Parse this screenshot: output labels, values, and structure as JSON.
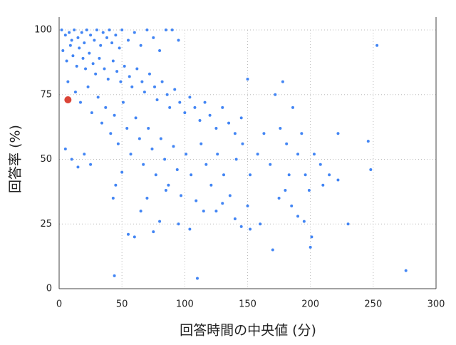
{
  "chart_data": {
    "type": "scatter",
    "xlabel": "回答時間の中央値 (分)",
    "ylabel": "回答率 (%)",
    "xlim": [
      0,
      300
    ],
    "ylim": [
      0,
      100
    ],
    "xticks": [
      0,
      50,
      100,
      150,
      200,
      250,
      300
    ],
    "yticks": [
      0,
      25,
      50,
      75,
      100
    ],
    "grid": true,
    "series": [
      {
        "color": "#4285f4",
        "marker_radius": 2,
        "x": [
          2,
          5,
          8,
          10,
          12,
          15,
          18,
          20,
          22,
          25,
          28,
          30,
          33,
          35,
          38,
          40,
          42,
          45,
          48,
          50,
          55,
          60,
          65,
          70,
          75,
          80,
          85,
          90,
          95,
          3,
          6,
          9,
          11,
          14,
          16,
          19,
          21,
          24,
          27,
          29,
          32,
          36,
          39,
          43,
          46,
          49,
          52,
          56,
          58,
          62,
          66,
          68,
          72,
          76,
          78,
          82,
          86,
          88,
          92,
          96,
          100,
          104,
          108,
          112,
          116,
          120,
          125,
          130,
          135,
          140,
          145,
          150,
          7,
          13,
          17,
          23,
          26,
          31,
          34,
          37,
          41,
          44,
          47,
          51,
          54,
          57,
          61,
          64,
          67,
          71,
          74,
          77,
          81,
          84,
          87,
          91,
          94,
          97,
          101,
          105,
          109,
          113,
          117,
          121,
          126,
          131,
          136,
          141,
          146,
          152,
          158,
          163,
          168,
          172,
          176,
          178,
          181,
          183,
          186,
          190,
          193,
          196,
          199,
          203,
          208,
          215,
          222,
          222,
          230,
          246,
          248,
          253,
          276,
          200,
          201,
          170,
          160,
          152,
          145,
          110,
          44,
          43,
          55,
          60,
          75,
          80,
          95,
          104,
          125,
          140,
          185,
          190,
          195,
          10,
          15,
          20,
          25,
          5,
          50,
          45,
          65,
          70,
          85,
          115,
          130,
          150,
          175,
          180,
          210
        ],
        "values": [
          100,
          98,
          99,
          96,
          100,
          97,
          99,
          95,
          100,
          98,
          96,
          100,
          94,
          99,
          97,
          100,
          95,
          98,
          93,
          100,
          96,
          99,
          94,
          100,
          97,
          92,
          100,
          100,
          96,
          92,
          88,
          94,
          90,
          86,
          93,
          89,
          85,
          91,
          87,
          83,
          89,
          85,
          81,
          88,
          84,
          80,
          86,
          82,
          78,
          85,
          80,
          76,
          83,
          78,
          73,
          80,
          75,
          70,
          77,
          72,
          68,
          74,
          70,
          65,
          72,
          67,
          62,
          70,
          64,
          60,
          66,
          81,
          80,
          76,
          72,
          78,
          68,
          74,
          64,
          70,
          60,
          67,
          56,
          72,
          62,
          52,
          66,
          58,
          48,
          62,
          54,
          44,
          58,
          50,
          40,
          55,
          46,
          36,
          52,
          44,
          34,
          56,
          48,
          40,
          52,
          44,
          36,
          50,
          56,
          44,
          52,
          60,
          48,
          75,
          62,
          80,
          56,
          44,
          70,
          52,
          60,
          44,
          38,
          52,
          48,
          44,
          60,
          42,
          25,
          57,
          46,
          94,
          7,
          16,
          20,
          15,
          25,
          23,
          24,
          4,
          5,
          35,
          21,
          20,
          22,
          26,
          25,
          23,
          30,
          27,
          32,
          28,
          26,
          50,
          47,
          52,
          48,
          54,
          45,
          40,
          30,
          35,
          38,
          30,
          33,
          32,
          35,
          38,
          40
        ]
      },
      {
        "color": "#db4437",
        "marker_radius": 5,
        "x": [
          7
        ],
        "values": [
          73
        ]
      }
    ]
  }
}
